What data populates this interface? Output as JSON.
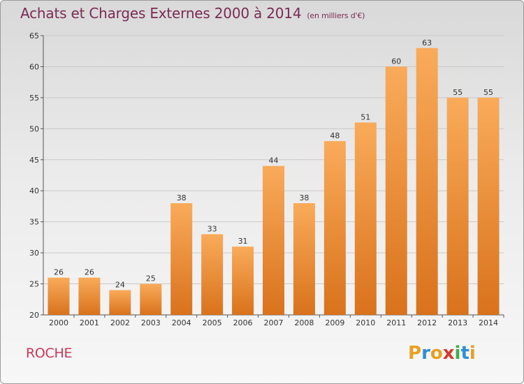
{
  "header": {
    "title": "Achats et Charges Externes 2000 à 2014",
    "subtitle": "(en milliers d'€)"
  },
  "footer": {
    "commune": "ROCHE",
    "logo": "Proxiti"
  },
  "colors": {
    "bar_light": "#f9ab5a",
    "bar_dark": "#d9721c",
    "title": "#7a2b54",
    "commune": "#c8385a"
  },
  "chart_data": {
    "type": "bar",
    "title": "Achats et Charges Externes 2000 à 2014",
    "subtitle": "(en milliers d'€)",
    "xlabel": "",
    "ylabel": "",
    "categories": [
      "2000",
      "2001",
      "2002",
      "2003",
      "2004",
      "2005",
      "2006",
      "2007",
      "2008",
      "2009",
      "2010",
      "2011",
      "2012",
      "2013",
      "2014"
    ],
    "values": [
      26,
      26,
      24,
      25,
      38,
      33,
      31,
      44,
      38,
      48,
      51,
      60,
      63,
      55,
      55
    ],
    "ylim": [
      20,
      65
    ],
    "yticks": [
      20,
      25,
      30,
      35,
      40,
      45,
      50,
      55,
      60,
      65
    ],
    "grid": true,
    "legend": "none"
  }
}
